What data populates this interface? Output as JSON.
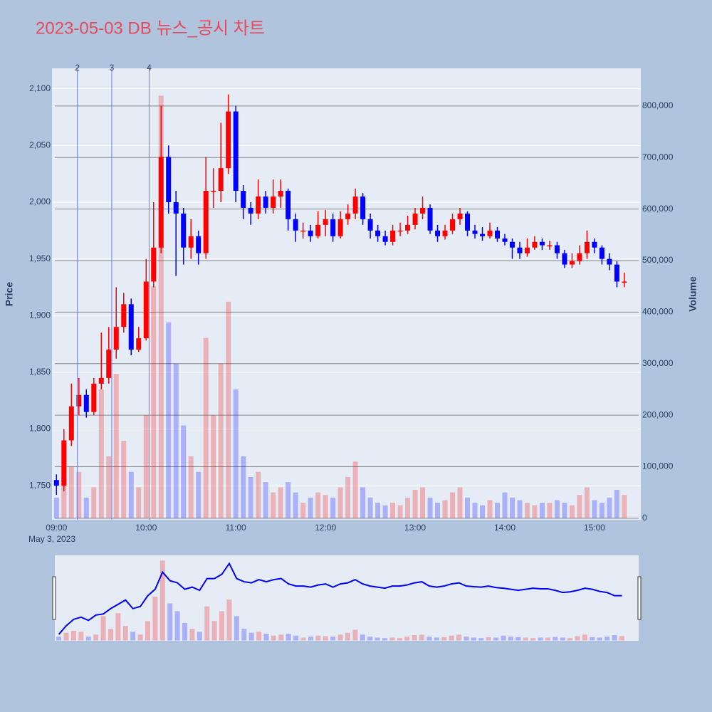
{
  "chart_data": {
    "type": "candlestick",
    "title": "2023-05-03 DB 뉴스_공시 차트",
    "y_label": "Price",
    "y2_label": "Volume",
    "x_date_label": "May 3, 2023",
    "increasing_color": "#ff0000",
    "decreasing_color": "#0000ff",
    "xlim": [
      "2023-05-03 08:57",
      "2023-05-03 15:31"
    ],
    "xticks": [
      {
        "value": "2023-05-03 09:00",
        "label": "09:00"
      },
      {
        "value": "2023-05-03 10:00",
        "label": "10:00"
      },
      {
        "value": "2023-05-03 11:00",
        "label": "11:00"
      },
      {
        "value": "2023-05-03 12:00",
        "label": "12:00"
      },
      {
        "value": "2023-05-03 13:00",
        "label": "13:00"
      },
      {
        "value": "2023-05-03 14:00",
        "label": "14:00"
      },
      {
        "value": "2023-05-03 15:00",
        "label": "15:00"
      }
    ],
    "ylim": [
      1720,
      2118
    ],
    "yticks": [
      {
        "value": 1750,
        "label": "1,750"
      },
      {
        "value": 1800,
        "label": "1,800"
      },
      {
        "value": 1850,
        "label": "1,850"
      },
      {
        "value": 1900,
        "label": "1,900"
      },
      {
        "value": 1950,
        "label": "1,950"
      },
      {
        "value": 2000,
        "label": "2,000"
      },
      {
        "value": 2050,
        "label": "2,050"
      },
      {
        "value": 2100,
        "label": "2,100"
      }
    ],
    "y2lim": [
      -3000,
      873000
    ],
    "y2ticks": [
      0,
      {
        "value": 100000,
        "label": "100,000"
      },
      {
        "value": 200000,
        "label": "200,000"
      },
      {
        "value": 300000,
        "label": "300,000"
      },
      {
        "value": 400000,
        "label": "400,000"
      },
      {
        "value": 500000,
        "label": "500,000"
      },
      {
        "value": 600000,
        "label": "600,000"
      },
      {
        "value": 700000,
        "label": "700,000"
      },
      {
        "value": 800000,
        "label": "800,000"
      }
    ],
    "annotations": [
      {
        "x": "2023-05-03 09:14",
        "text": "2"
      },
      {
        "x": "2023-05-03 09:37",
        "text": "3"
      },
      {
        "x": "2023-05-03 10:02",
        "text": "4"
      }
    ],
    "x": [
      "2023-05-03 09:00",
      "2023-05-03 09:05",
      "2023-05-03 09:10",
      "2023-05-03 09:15",
      "2023-05-03 09:20",
      "2023-05-03 09:25",
      "2023-05-03 09:30",
      "2023-05-03 09:35",
      "2023-05-03 09:40",
      "2023-05-03 09:45",
      "2023-05-03 09:50",
      "2023-05-03 09:55",
      "2023-05-03 10:00",
      "2023-05-03 10:05",
      "2023-05-03 10:10",
      "2023-05-03 10:15",
      "2023-05-03 10:20",
      "2023-05-03 10:25",
      "2023-05-03 10:30",
      "2023-05-03 10:35",
      "2023-05-03 10:40",
      "2023-05-03 10:45",
      "2023-05-03 10:50",
      "2023-05-03 10:55",
      "2023-05-03 11:00",
      "2023-05-03 11:05",
      "2023-05-03 11:10",
      "2023-05-03 11:15",
      "2023-05-03 11:20",
      "2023-05-03 11:25",
      "2023-05-03 11:30",
      "2023-05-03 11:35",
      "2023-05-03 11:40",
      "2023-05-03 11:45",
      "2023-05-03 11:50",
      "2023-05-03 11:55",
      "2023-05-03 12:00",
      "2023-05-03 12:05",
      "2023-05-03 12:10",
      "2023-05-03 12:15",
      "2023-05-03 12:20",
      "2023-05-03 12:25",
      "2023-05-03 12:30",
      "2023-05-03 12:35",
      "2023-05-03 12:40",
      "2023-05-03 12:45",
      "2023-05-03 12:50",
      "2023-05-03 12:55",
      "2023-05-03 13:00",
      "2023-05-03 13:05",
      "2023-05-03 13:10",
      "2023-05-03 13:15",
      "2023-05-03 13:20",
      "2023-05-03 13:25",
      "2023-05-03 13:30",
      "2023-05-03 13:35",
      "2023-05-03 13:40",
      "2023-05-03 13:45",
      "2023-05-03 13:50",
      "2023-05-03 13:55",
      "2023-05-03 14:00",
      "2023-05-03 14:05",
      "2023-05-03 14:10",
      "2023-05-03 14:15",
      "2023-05-03 14:20",
      "2023-05-03 14:25",
      "2023-05-03 14:30",
      "2023-05-03 14:35",
      "2023-05-03 14:40",
      "2023-05-03 14:45",
      "2023-05-03 14:50",
      "2023-05-03 14:55",
      "2023-05-03 15:00",
      "2023-05-03 15:05",
      "2023-05-03 15:10",
      "2023-05-03 15:15",
      "2023-05-03 15:20"
    ],
    "open": [
      1755,
      1750,
      1790,
      1820,
      1830,
      1815,
      1840,
      1845,
      1870,
      1890,
      1910,
      1870,
      1880,
      1930,
      1960,
      2040,
      2000,
      1990,
      1960,
      1970,
      1955,
      2010,
      2010,
      2030,
      2080,
      2010,
      1995,
      1990,
      2005,
      1995,
      2005,
      2010,
      1985,
      1975,
      1975,
      1970,
      1980,
      1985,
      1970,
      1985,
      1990,
      2005,
      1985,
      1975,
      1970,
      1965,
      1975,
      1975,
      1980,
      1990,
      1995,
      1975,
      1970,
      1975,
      1985,
      1990,
      1975,
      1972,
      1970,
      1975,
      1968,
      1965,
      1960,
      1955,
      1960,
      1965,
      1962,
      1962,
      1955,
      1945,
      1948,
      1955,
      1965,
      1960,
      1950,
      1945,
      1930
    ],
    "high": [
      1760,
      1800,
      1840,
      1845,
      1835,
      1845,
      1885,
      1890,
      1925,
      1920,
      1915,
      1890,
      1950,
      2000,
      2085,
      2050,
      2010,
      1995,
      1985,
      1975,
      2040,
      2030,
      2070,
      2095,
      2085,
      2015,
      2000,
      2020,
      2010,
      2020,
      2020,
      2012,
      1990,
      1982,
      1980,
      1992,
      1993,
      1990,
      1992,
      1998,
      2012,
      2008,
      1990,
      1980,
      1975,
      1980,
      1982,
      1988,
      1995,
      2005,
      1998,
      1980,
      1980,
      1990,
      1995,
      1992,
      1980,
      1978,
      1982,
      1978,
      1972,
      1968,
      1965,
      1968,
      1970,
      1968,
      1966,
      1965,
      1958,
      1955,
      1962,
      1975,
      1968,
      1962,
      1955,
      1948,
      1938
    ],
    "low": [
      1742,
      1745,
      1785,
      1812,
      1810,
      1812,
      1835,
      1840,
      1862,
      1885,
      1865,
      1868,
      1878,
      1925,
      1955,
      1990,
      1935,
      1945,
      1950,
      1945,
      1950,
      1995,
      2000,
      2025,
      2000,
      1985,
      1980,
      1985,
      1990,
      1990,
      1995,
      1975,
      1965,
      1968,
      1965,
      1968,
      1970,
      1965,
      1968,
      1980,
      1985,
      1980,
      1968,
      1965,
      1962,
      1962,
      1970,
      1972,
      1976,
      1985,
      1972,
      1965,
      1967,
      1972,
      1980,
      1970,
      1968,
      1966,
      1968,
      1965,
      1962,
      1950,
      1950,
      1952,
      1958,
      1958,
      1958,
      1950,
      1942,
      1942,
      1945,
      1950,
      1955,
      1945,
      1940,
      1925,
      1925
    ],
    "close": [
      1750,
      1790,
      1820,
      1830,
      1815,
      1840,
      1845,
      1870,
      1890,
      1910,
      1870,
      1880,
      1930,
      1960,
      2040,
      2000,
      1990,
      1960,
      1970,
      1955,
      2010,
      2010,
      2030,
      2080,
      2010,
      1995,
      1990,
      2005,
      1995,
      2005,
      2010,
      1985,
      1975,
      1975,
      1970,
      1980,
      1985,
      1970,
      1985,
      1990,
      2005,
      1985,
      1975,
      1970,
      1965,
      1975,
      1975,
      1980,
      1990,
      1995,
      1975,
      1970,
      1975,
      1985,
      1990,
      1975,
      1972,
      1970,
      1975,
      1968,
      1965,
      1960,
      1955,
      1960,
      1965,
      1962,
      1962,
      1955,
      1945,
      1948,
      1955,
      1965,
      1960,
      1950,
      1945,
      1930,
      1930
    ],
    "volume": [
      40000,
      80000,
      100000,
      90000,
      40000,
      60000,
      250000,
      120000,
      280000,
      150000,
      90000,
      60000,
      200000,
      450000,
      820000,
      380000,
      300000,
      180000,
      120000,
      90000,
      350000,
      200000,
      300000,
      420000,
      250000,
      120000,
      80000,
      90000,
      70000,
      50000,
      60000,
      70000,
      50000,
      30000,
      40000,
      50000,
      45000,
      40000,
      60000,
      80000,
      110000,
      60000,
      40000,
      30000,
      25000,
      30000,
      25000,
      40000,
      55000,
      60000,
      40000,
      30000,
      35000,
      50000,
      60000,
      40000,
      30000,
      25000,
      35000,
      30000,
      50000,
      40000,
      35000,
      30000,
      25000,
      30000,
      30000,
      35000,
      30000,
      25000,
      45000,
      60000,
      35000,
      30000,
      40000,
      55000,
      45000
    ]
  }
}
